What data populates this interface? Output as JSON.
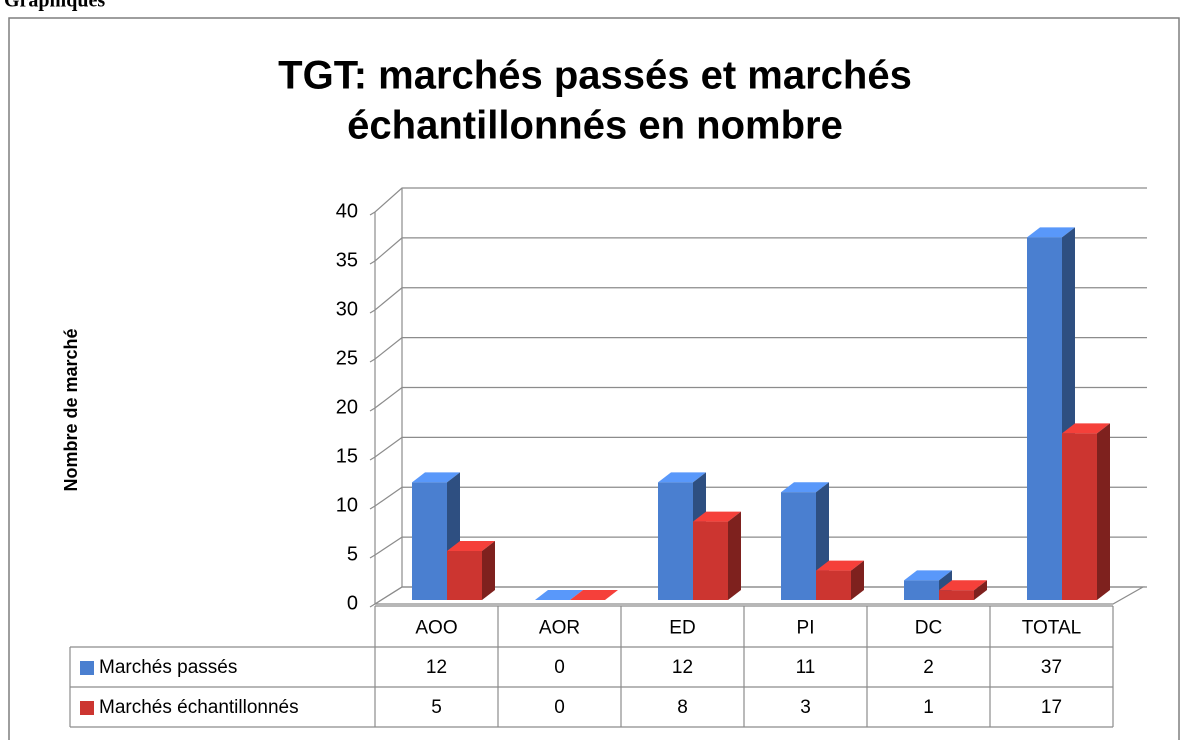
{
  "page_header": "Graphiques",
  "chart_data": {
    "type": "bar",
    "title": [
      "TGT: marchés passés et marchés",
      "échantillonnés en nombre"
    ],
    "ylabel": "Nombre de marché",
    "categories": [
      "AOO",
      "AOR",
      "ED",
      "PI",
      "DC",
      "TOTAL"
    ],
    "series": [
      {
        "name": "Marchés passés",
        "color": "#4a7fd0",
        "values": [
          12,
          0,
          12,
          11,
          2,
          37
        ]
      },
      {
        "name": "Marchés échantillonnés",
        "color": "#cc3530",
        "values": [
          5,
          0,
          8,
          3,
          1,
          17
        ]
      }
    ],
    "ylim": [
      0,
      40
    ],
    "yticks": [
      0,
      5,
      10,
      15,
      20,
      25,
      30,
      35,
      40
    ],
    "grid": true,
    "data_table": true
  }
}
